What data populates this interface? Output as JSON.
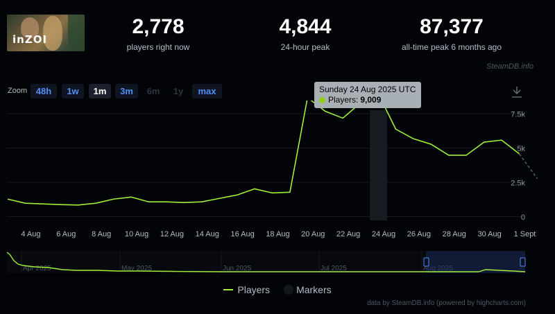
{
  "game": {
    "logo_text": "inZOI"
  },
  "stats": [
    {
      "value": "2,778",
      "label": "players right now"
    },
    {
      "value": "4,844",
      "label": "24-hour peak"
    },
    {
      "value": "87,377",
      "label": "all-time peak 6 months ago"
    }
  ],
  "credit_top": "SteamDB.info",
  "zoom": {
    "label": "Zoom",
    "buttons": [
      {
        "label": "48h",
        "state": "normal"
      },
      {
        "label": "1w",
        "state": "normal"
      },
      {
        "label": "1m",
        "state": "active"
      },
      {
        "label": "3m",
        "state": "normal"
      },
      {
        "label": "6m",
        "state": "disabled"
      },
      {
        "label": "1y",
        "state": "disabled"
      },
      {
        "label": "max",
        "state": "normal"
      }
    ]
  },
  "tooltip": {
    "date": "Sunday 24 Aug 2025 UTC",
    "series": "Players:",
    "value": "9,009"
  },
  "legend": {
    "players": "Players",
    "markers": "Markers"
  },
  "credit_bottom": "data by SteamDB.info (powered by highcharts.com)",
  "colors": {
    "line": "#a0f038",
    "accent": "#4f8ef7",
    "tooltip_bg": "#a9b0b5",
    "navigator_mask": "#1b2a5a"
  },
  "chart_data": {
    "type": "line",
    "series": [
      {
        "name": "Players",
        "x": [
          "3 Aug",
          "4 Aug",
          "5 Aug",
          "6 Aug",
          "7 Aug",
          "8 Aug",
          "9 Aug",
          "10 Aug",
          "11 Aug",
          "12 Aug",
          "13 Aug",
          "14 Aug",
          "15 Aug",
          "16 Aug",
          "17 Aug",
          "18 Aug",
          "19 Aug",
          "20 Aug",
          "21 Aug",
          "22 Aug",
          "23 Aug",
          "24 Aug",
          "25 Aug",
          "26 Aug",
          "27 Aug",
          "28 Aug",
          "29 Aug",
          "30 Aug",
          "31 Aug",
          "1 Sept"
        ],
        "values": [
          1300,
          1000,
          950,
          900,
          870,
          1000,
          1300,
          1450,
          1100,
          1100,
          1050,
          1100,
          1350,
          1600,
          2050,
          1750,
          1800,
          8700,
          7700,
          7200,
          8300,
          9009,
          6400,
          5700,
          5300,
          4500,
          4500,
          5450,
          5600,
          4600
        ]
      }
    ],
    "projected": {
      "from": "1 Sept",
      "to": "2 Sept",
      "values": [
        4600,
        2800
      ]
    },
    "x_ticks": [
      "4 Aug",
      "6 Aug",
      "8 Aug",
      "10 Aug",
      "12 Aug",
      "14 Aug",
      "16 Aug",
      "18 Aug",
      "20 Aug",
      "22 Aug",
      "24 Aug",
      "26 Aug",
      "28 Aug",
      "30 Aug",
      "1 Sept"
    ],
    "y_ticks": [
      "0",
      "2.5k",
      "5k",
      "7.5k"
    ],
    "ylim": [
      0,
      12000
    ],
    "highlight": "24 Aug",
    "navigator": {
      "labels": [
        "Apr 2025",
        "May 2025",
        "Jun 2025",
        "Jul 2025",
        "Aug 2025"
      ]
    }
  }
}
